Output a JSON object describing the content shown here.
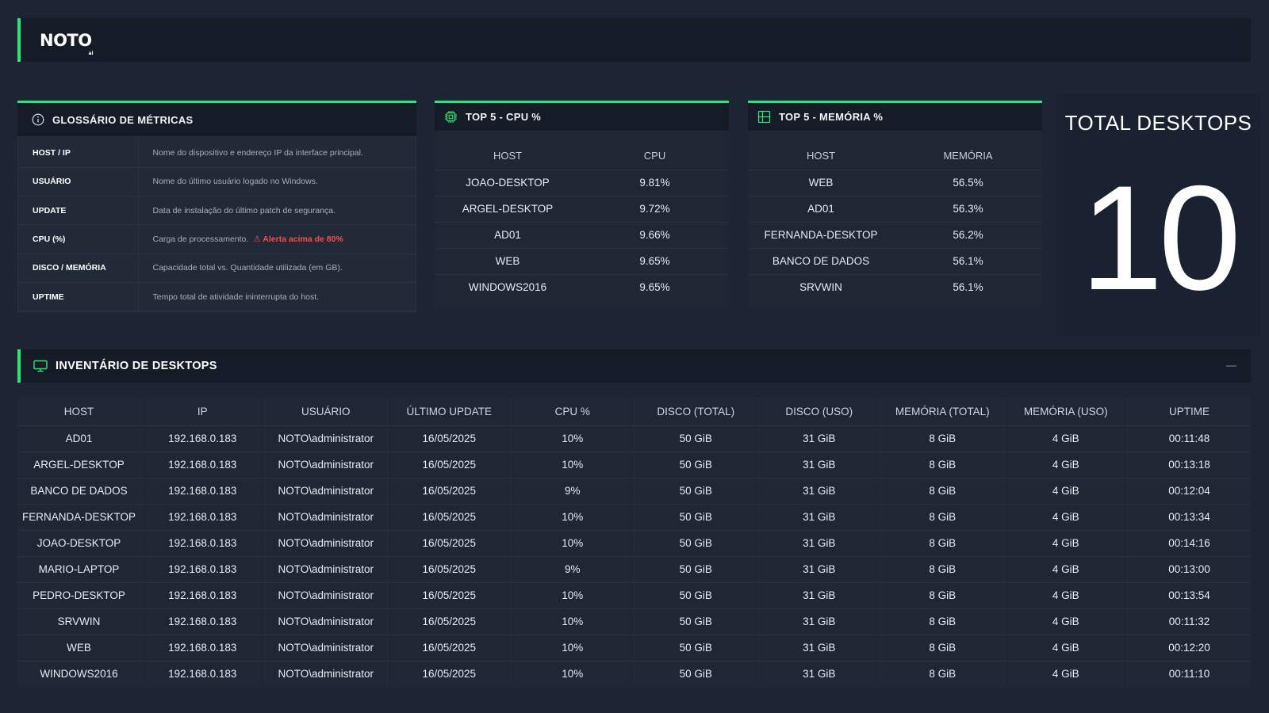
{
  "header": {
    "logo": "NOTO",
    "logo_sub": "ai"
  },
  "glossary": {
    "title": "GLOSSÁRIO DE MÉTRICAS",
    "rows": [
      {
        "key": "HOST / IP",
        "desc": "Nome do dispositivo e endereço IP da interface principal."
      },
      {
        "key": "USUÁRIO",
        "desc": "Nome do último usuário logado no Windows."
      },
      {
        "key": "UPDATE",
        "desc": "Data de instalação do último patch de segurança."
      },
      {
        "key": "CPU (%)",
        "desc": "Carga de processamento.",
        "alert": "⚠ Alerta acima de 80%"
      },
      {
        "key": "DISCO / MEMÓRIA",
        "desc": "Capacidade total vs. Quantidade utilizada (em GB)."
      },
      {
        "key": "UPTIME",
        "desc": "Tempo total de atividade ininterrupta do host."
      }
    ]
  },
  "top_cpu": {
    "title": "TOP 5 - CPU %",
    "headers": [
      "HOST",
      "CPU"
    ],
    "rows": [
      [
        "JOAO-DESKTOP",
        "9.81%"
      ],
      [
        "ARGEL-DESKTOP",
        "9.72%"
      ],
      [
        "AD01",
        "9.66%"
      ],
      [
        "WEB",
        "9.65%"
      ],
      [
        "WINDOWS2016",
        "9.65%"
      ]
    ]
  },
  "top_mem": {
    "title": "TOP 5 - MEMÓRIA %",
    "headers": [
      "HOST",
      "MEMÓRIA"
    ],
    "rows": [
      [
        "WEB",
        "56.5%"
      ],
      [
        "AD01",
        "56.3%"
      ],
      [
        "FERNANDA-DESKTOP",
        "56.2%"
      ],
      [
        "BANCO DE DADOS",
        "56.1%"
      ],
      [
        "SRVWIN",
        "56.1%"
      ]
    ]
  },
  "total": {
    "title": "TOTAL DESKTOPS",
    "value": "10"
  },
  "inventory": {
    "title": "INVENTÁRIO DE DESKTOPS",
    "headers": [
      "HOST",
      "IP",
      "USUÁRIO",
      "ÚLTIMO UPDATE",
      "CPU %",
      "DISCO (TOTAL)",
      "DISCO (USO)",
      "MEMÓRIA (TOTAL)",
      "MEMÓRIA (USO)",
      "UPTIME"
    ],
    "rows": [
      [
        "AD01",
        "192.168.0.183",
        "NOTO\\administrator",
        "16/05/2025",
        "10%",
        "50 GiB",
        "31 GiB",
        "8 GiB",
        "4 GiB",
        "00:11:48"
      ],
      [
        "ARGEL-DESKTOP",
        "192.168.0.183",
        "NOTO\\administrator",
        "16/05/2025",
        "10%",
        "50 GiB",
        "31 GiB",
        "8 GiB",
        "4 GiB",
        "00:13:18"
      ],
      [
        "BANCO DE DADOS",
        "192.168.0.183",
        "NOTO\\administrator",
        "16/05/2025",
        "9%",
        "50 GiB",
        "31 GiB",
        "8 GiB",
        "4 GiB",
        "00:12:04"
      ],
      [
        "FERNANDA-DESKTOP",
        "192.168.0.183",
        "NOTO\\administrator",
        "16/05/2025",
        "10%",
        "50 GiB",
        "31 GiB",
        "8 GiB",
        "4 GiB",
        "00:13:34"
      ],
      [
        "JOAO-DESKTOP",
        "192.168.0.183",
        "NOTO\\administrator",
        "16/05/2025",
        "10%",
        "50 GiB",
        "31 GiB",
        "8 GiB",
        "4 GiB",
        "00:14:16"
      ],
      [
        "MARIO-LAPTOP",
        "192.168.0.183",
        "NOTO\\administrator",
        "16/05/2025",
        "9%",
        "50 GiB",
        "31 GiB",
        "8 GiB",
        "4 GiB",
        "00:13:00"
      ],
      [
        "PEDRO-DESKTOP",
        "192.168.0.183",
        "NOTO\\administrator",
        "16/05/2025",
        "10%",
        "50 GiB",
        "31 GiB",
        "8 GiB",
        "4 GiB",
        "00:13:54"
      ],
      [
        "SRVWIN",
        "192.168.0.183",
        "NOTO\\administrator",
        "16/05/2025",
        "10%",
        "50 GiB",
        "31 GiB",
        "8 GiB",
        "4 GiB",
        "00:11:32"
      ],
      [
        "WEB",
        "192.168.0.183",
        "NOTO\\administrator",
        "16/05/2025",
        "10%",
        "50 GiB",
        "31 GiB",
        "8 GiB",
        "4 GiB",
        "00:12:20"
      ],
      [
        "WINDOWS2016",
        "192.168.0.183",
        "NOTO\\administrator",
        "16/05/2025",
        "10%",
        "50 GiB",
        "31 GiB",
        "8 GiB",
        "4 GiB",
        "00:11:10"
      ]
    ]
  },
  "colors": {
    "accent": "#2ee57a",
    "alert": "#ff4b4b",
    "background": "#1d2433"
  },
  "icons": {
    "glossary": "info-icon",
    "cpu": "cpu-chip-icon",
    "memory": "memory-grid-icon",
    "inventory": "monitor-icon"
  }
}
